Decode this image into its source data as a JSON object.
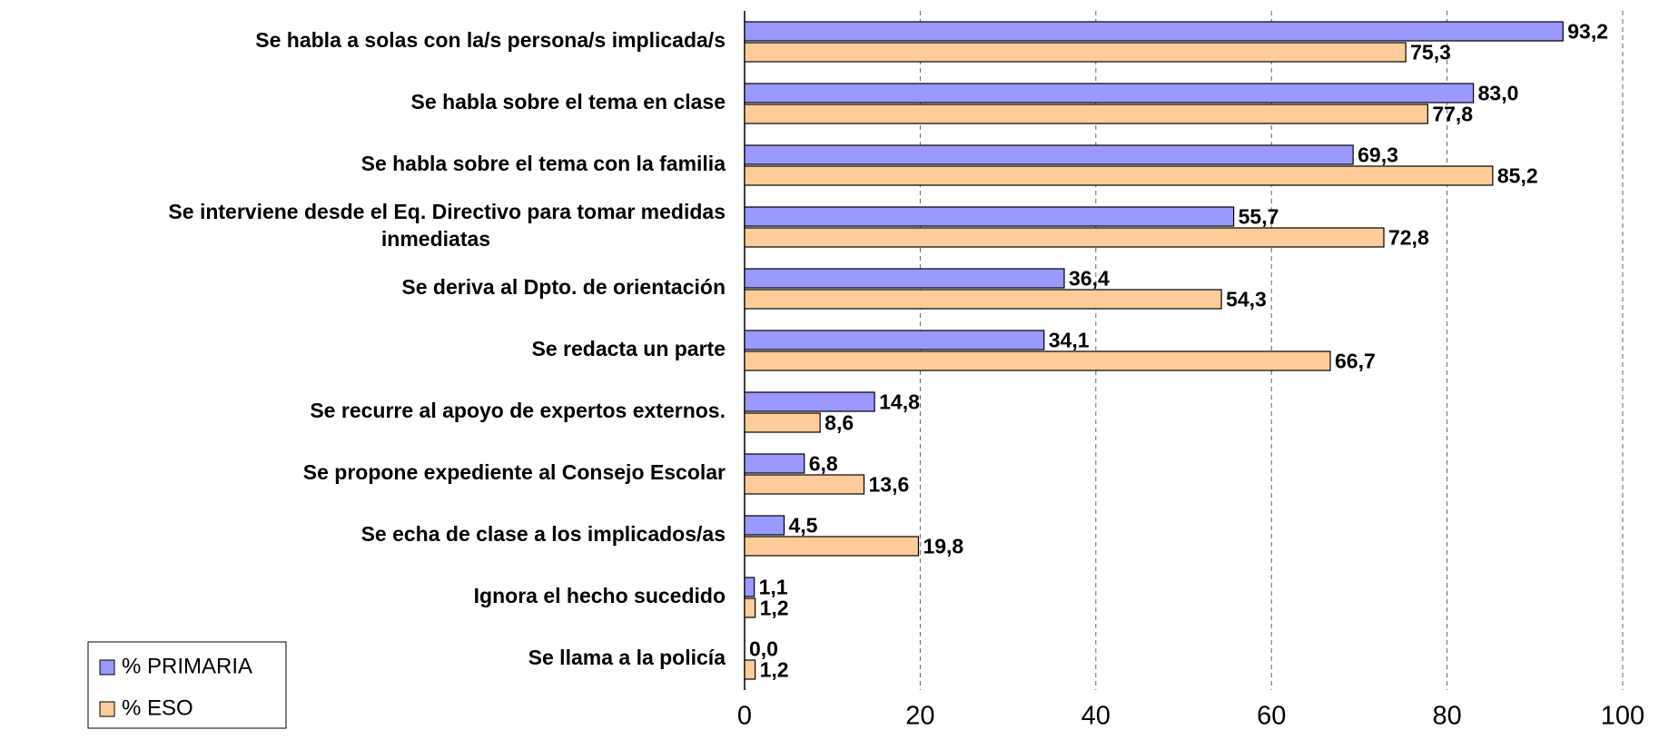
{
  "chart_data": {
    "type": "barh",
    "categories": [
      "Se habla a solas con la/s persona/s implicada/s",
      "Se habla sobre el tema en clase",
      "Se habla sobre el tema con la familia",
      "Se interviene desde el Eq. Directivo para  tomar medidas\ninmediatas",
      "Se deriva al Dpto. de orientación",
      "Se redacta un parte",
      "Se recurre al apoyo de expertos externos.",
      "Se propone expediente al Consejo Escolar",
      "Se echa de clase a los implicados/as",
      "Ignora el hecho sucedido",
      "Se llama a la policía"
    ],
    "series": [
      {
        "name": "% PRIMARIA",
        "color": "#9999ff",
        "values": [
          93.2,
          83.0,
          69.3,
          55.7,
          36.4,
          34.1,
          14.8,
          6.8,
          4.5,
          1.1,
          0.0
        ],
        "value_labels": [
          "93,2",
          "83,0",
          "69,3",
          "55,7",
          "36,4",
          "34,1",
          "14,8",
          "6,8",
          "4,5",
          "1,1",
          "0,0"
        ]
      },
      {
        "name": "% ESO",
        "color": "#ffcc99",
        "values": [
          75.3,
          77.8,
          85.2,
          72.8,
          54.3,
          66.7,
          8.6,
          13.6,
          19.8,
          1.2,
          1.2
        ],
        "value_labels": [
          "75,3",
          "77,8",
          "85,2",
          "72,8",
          "54,3",
          "66,7",
          "8,6",
          "13,6",
          "19,8",
          "1,2",
          "1,2"
        ]
      }
    ],
    "xlim": [
      0,
      100
    ],
    "xticks": [
      0,
      20,
      40,
      60,
      80,
      100
    ],
    "grid": true,
    "legend": "lower left"
  }
}
